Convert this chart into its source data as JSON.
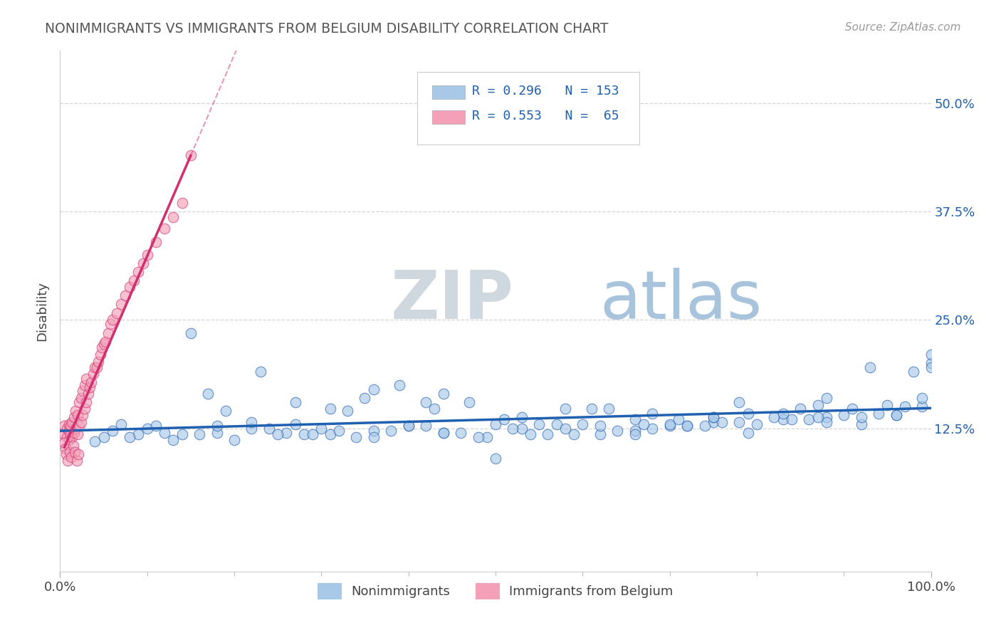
{
  "title": "NONIMMIGRANTS VS IMMIGRANTS FROM BELGIUM DISABILITY CORRELATION CHART",
  "source": "Source: ZipAtlas.com",
  "ylabel": "Disability",
  "xlim": [
    0,
    1.0
  ],
  "ylim": [
    -0.04,
    0.56
  ],
  "yticks": [
    0.125,
    0.25,
    0.375,
    0.5
  ],
  "ytick_labels": [
    "12.5%",
    "25.0%",
    "37.5%",
    "50.0%"
  ],
  "xticks": [
    0.0,
    1.0
  ],
  "xtick_labels": [
    "0.0%",
    "100.0%"
  ],
  "blue_color": "#a8c8e8",
  "pink_color": "#f4a0b8",
  "blue_line_color": "#2060b0",
  "pink_line_color": "#d03070",
  "blue_r": 0.296,
  "blue_n": 153,
  "pink_r": 0.553,
  "pink_n": 65,
  "watermark_zip": "ZIP",
  "watermark_atlas": "atlas",
  "watermark_color_zip": "#c0ccd8",
  "watermark_color_atlas": "#90b8d8",
  "background_color": "#ffffff",
  "grid_color": "#c8c8c8",
  "blue_scatter_x": [
    0.05,
    0.09,
    0.13,
    0.18,
    0.22,
    0.27,
    0.31,
    0.36,
    0.4,
    0.44,
    0.49,
    0.53,
    0.57,
    0.62,
    0.66,
    0.7,
    0.75,
    0.79,
    0.83,
    0.88,
    0.92,
    0.96,
    1.0,
    0.04,
    0.08,
    0.12,
    0.16,
    0.2,
    0.24,
    0.28,
    0.32,
    0.36,
    0.4,
    0.44,
    0.48,
    0.52,
    0.56,
    0.6,
    0.64,
    0.68,
    0.72,
    0.76,
    0.8,
    0.84,
    0.88,
    0.92,
    0.96,
    1.0,
    0.06,
    0.1,
    0.14,
    0.18,
    0.22,
    0.26,
    0.3,
    0.34,
    0.38,
    0.42,
    0.46,
    0.5,
    0.54,
    0.58,
    0.62,
    0.66,
    0.7,
    0.74,
    0.78,
    0.82,
    0.86,
    0.9,
    0.94,
    0.98,
    0.07,
    0.15,
    0.23,
    0.31,
    0.39,
    0.47,
    0.55,
    0.63,
    0.71,
    0.79,
    0.87,
    0.95,
    0.11,
    0.19,
    0.27,
    0.35,
    0.43,
    0.51,
    0.59,
    0.67,
    0.75,
    0.83,
    0.91,
    0.99,
    0.25,
    0.5,
    0.75,
    1.0,
    0.33,
    0.66,
    0.99,
    0.17,
    0.42,
    0.68,
    0.93,
    0.29,
    0.58,
    0.87,
    0.36,
    0.72,
    0.44,
    0.88,
    0.53,
    0.97,
    0.61,
    0.78,
    0.85
  ],
  "blue_scatter_y": [
    0.115,
    0.118,
    0.112,
    0.12,
    0.125,
    0.13,
    0.118,
    0.122,
    0.128,
    0.12,
    0.115,
    0.125,
    0.13,
    0.118,
    0.122,
    0.128,
    0.132,
    0.12,
    0.135,
    0.138,
    0.13,
    0.14,
    0.2,
    0.11,
    0.115,
    0.12,
    0.118,
    0.112,
    0.125,
    0.118,
    0.122,
    0.115,
    0.128,
    0.12,
    0.115,
    0.125,
    0.118,
    0.13,
    0.122,
    0.125,
    0.128,
    0.132,
    0.13,
    0.135,
    0.132,
    0.138,
    0.14,
    0.195,
    0.122,
    0.125,
    0.118,
    0.128,
    0.132,
    0.12,
    0.125,
    0.115,
    0.122,
    0.128,
    0.12,
    0.13,
    0.118,
    0.125,
    0.128,
    0.135,
    0.13,
    0.128,
    0.132,
    0.138,
    0.135,
    0.14,
    0.142,
    0.19,
    0.13,
    0.235,
    0.19,
    0.148,
    0.175,
    0.155,
    0.13,
    0.148,
    0.135,
    0.142,
    0.138,
    0.152,
    0.128,
    0.145,
    0.155,
    0.16,
    0.148,
    0.135,
    0.118,
    0.13,
    0.138,
    0.142,
    0.148,
    0.15,
    0.118,
    0.09,
    0.138,
    0.21,
    0.145,
    0.118,
    0.16,
    0.165,
    0.155,
    0.142,
    0.195,
    0.118,
    0.148,
    0.152,
    0.17,
    0.128,
    0.165,
    0.16,
    0.138,
    0.15,
    0.148,
    0.155,
    0.148
  ],
  "pink_scatter_x": [
    0.005,
    0.005,
    0.008,
    0.008,
    0.01,
    0.01,
    0.01,
    0.012,
    0.012,
    0.014,
    0.014,
    0.016,
    0.016,
    0.018,
    0.018,
    0.02,
    0.02,
    0.022,
    0.022,
    0.024,
    0.024,
    0.026,
    0.026,
    0.028,
    0.028,
    0.03,
    0.03,
    0.032,
    0.034,
    0.036,
    0.038,
    0.04,
    0.042,
    0.044,
    0.046,
    0.048,
    0.05,
    0.052,
    0.055,
    0.058,
    0.06,
    0.065,
    0.07,
    0.075,
    0.08,
    0.085,
    0.09,
    0.095,
    0.1,
    0.11,
    0.12,
    0.13,
    0.14,
    0.15,
    0.005,
    0.006,
    0.007,
    0.009,
    0.011,
    0.013,
    0.015,
    0.017,
    0.019,
    0.021
  ],
  "pink_scatter_y": [
    0.118,
    0.128,
    0.115,
    0.125,
    0.112,
    0.122,
    0.13,
    0.118,
    0.128,
    0.115,
    0.132,
    0.12,
    0.138,
    0.125,
    0.145,
    0.118,
    0.14,
    0.128,
    0.155,
    0.132,
    0.16,
    0.14,
    0.168,
    0.148,
    0.175,
    0.155,
    0.182,
    0.165,
    0.172,
    0.178,
    0.188,
    0.195,
    0.195,
    0.202,
    0.21,
    0.218,
    0.222,
    0.225,
    0.235,
    0.245,
    0.25,
    0.258,
    0.268,
    0.278,
    0.288,
    0.295,
    0.305,
    0.315,
    0.325,
    0.34,
    0.355,
    0.368,
    0.385,
    0.44,
    0.108,
    0.102,
    0.095,
    0.088,
    0.098,
    0.092,
    0.105,
    0.098,
    0.088,
    0.095
  ]
}
